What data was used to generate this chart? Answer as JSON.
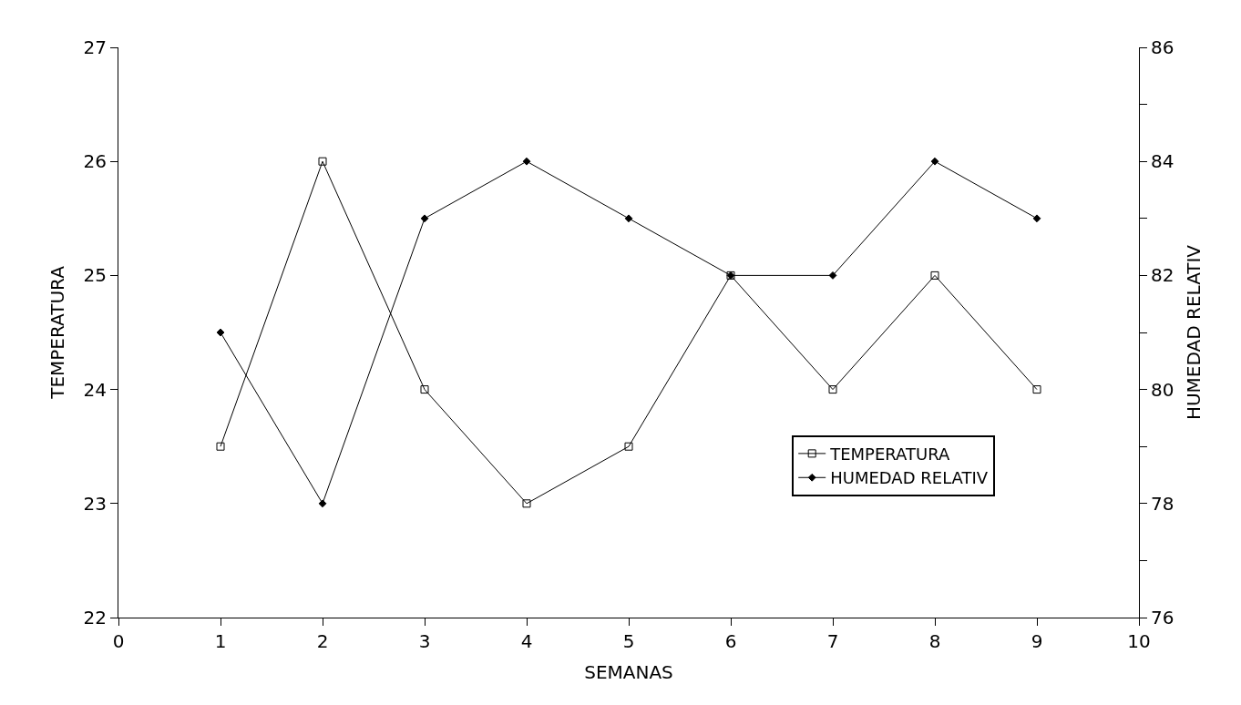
{
  "chart_data": {
    "type": "line",
    "xlabel": "SEMANAS",
    "ylabel": "TEMPERATURA",
    "y2label": "HUMEDAD RELATIV",
    "x": [
      1,
      2,
      3,
      4,
      5,
      6,
      7,
      8,
      9
    ],
    "series": [
      {
        "name": "TEMPERATURA",
        "color": "#000000",
        "marker": "square",
        "values": [
          23.5,
          26,
          24,
          23,
          23.5,
          25,
          24,
          25,
          24
        ]
      },
      {
        "name": "HUMEDAD RELATIV",
        "color": "#000000",
        "marker": "diamond",
        "axis": "y2",
        "values": [
          81,
          78,
          83,
          84,
          83,
          82,
          82,
          84,
          83
        ]
      }
    ],
    "xlim": [
      0,
      10
    ],
    "xticks": [
      0,
      1,
      2,
      3,
      4,
      5,
      6,
      7,
      8,
      9,
      10
    ],
    "ylim": [
      22,
      27
    ],
    "yticks": [
      22,
      23,
      24,
      25,
      26,
      27
    ],
    "y2lim": [
      76,
      86
    ],
    "y2ticks": [
      76,
      {
        "value": 77,
        "label": null
      },
      78,
      {
        "value": 79,
        "label": null
      },
      80,
      {
        "value": 81,
        "label": null
      },
      82,
      {
        "value": 83,
        "label": null
      },
      84,
      {
        "value": 85,
        "label": null
      },
      86
    ],
    "legend": "bottom right"
  }
}
